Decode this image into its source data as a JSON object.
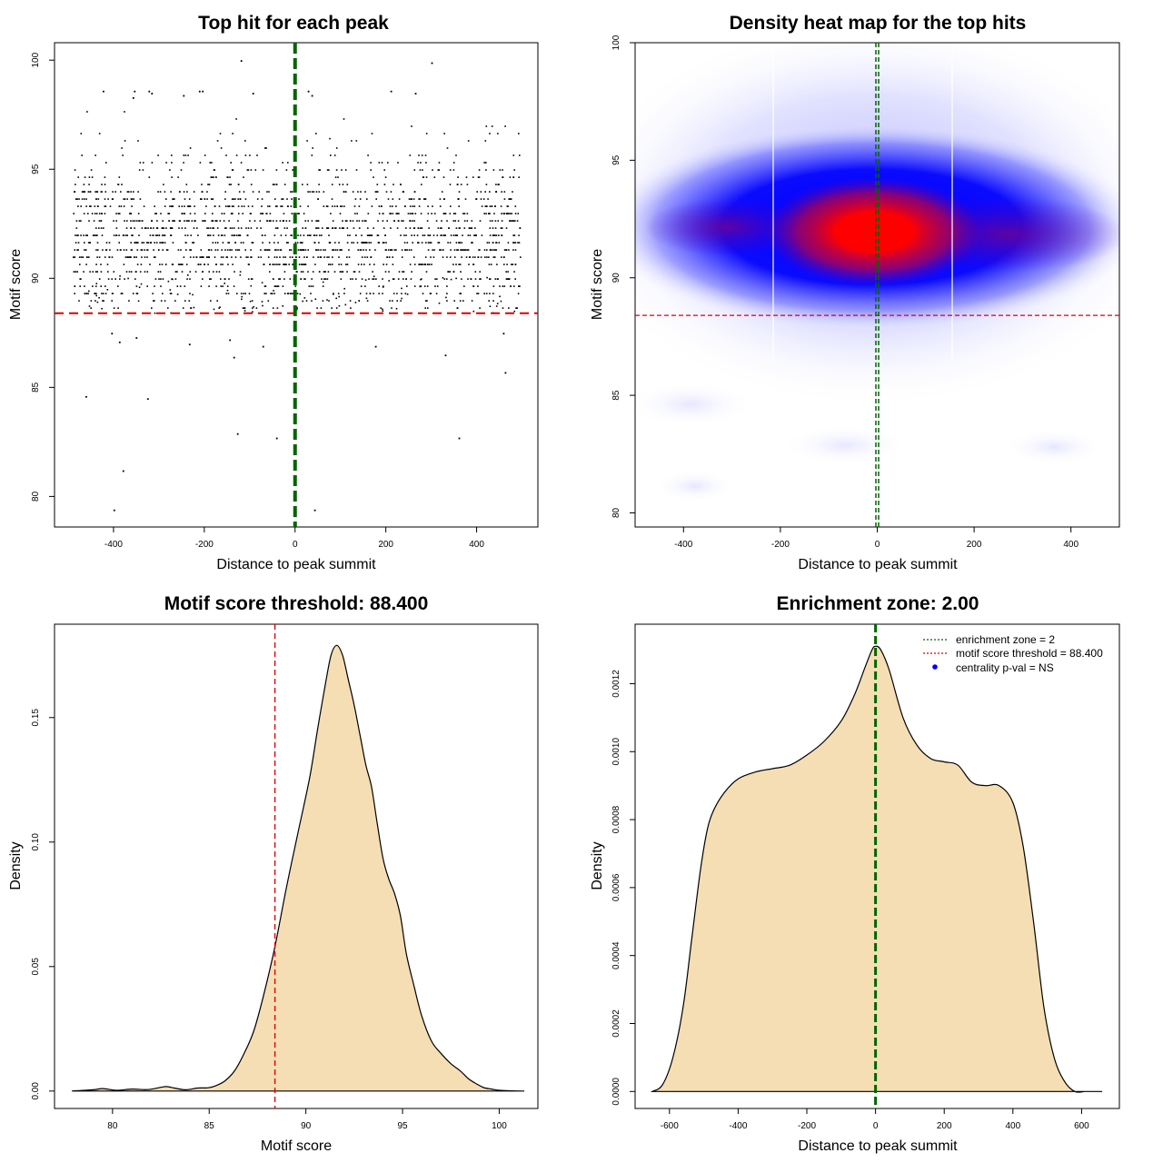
{
  "chart_data": [
    {
      "id": "scatter",
      "type": "scatter",
      "title": "Top hit for each peak",
      "xlabel": "Distance to peak summit",
      "ylabel": "Motif score",
      "xlim": [
        -530,
        535
      ],
      "ylim": [
        78.6,
        100.8
      ],
      "xticks": [
        -400,
        -200,
        0,
        200,
        400
      ],
      "yticks": [
        80,
        85,
        90,
        95,
        100
      ],
      "xtick_labels": [
        "-400",
        "-200",
        "0",
        "200",
        "400"
      ],
      "ytick_labels": [
        "80",
        "85",
        "90",
        "95",
        "100"
      ],
      "hline": {
        "y": 88.4,
        "color": "#dd0000"
      },
      "vline": {
        "x": 0,
        "color": "#006400"
      },
      "n_points": 1900,
      "core_distribution": {
        "x_range": [
          -490,
          495
        ],
        "y_mean": 91.8,
        "y_sd": 2.0
      },
      "outliers": [
        [
          -400,
          79.4
        ],
        [
          42,
          79.4
        ],
        [
          -380,
          81.2
        ],
        [
          -128,
          82.9
        ],
        [
          -42,
          82.7
        ],
        [
          360,
          82.7
        ],
        [
          -326,
          84.5
        ],
        [
          -462,
          84.6
        ],
        [
          -136,
          86.4
        ],
        [
          -72,
          86.9
        ],
        [
          330,
          86.5
        ],
        [
          462,
          85.7
        ],
        [
          -234,
          87.0
        ],
        [
          -145,
          87.2
        ],
        [
          -388,
          87.1
        ],
        [
          -405,
          87.5
        ],
        [
          -351,
          87.3
        ],
        [
          176,
          86.9
        ],
        [
          458,
          87.5
        ],
        [
          -120,
          100.0
        ],
        [
          300,
          99.9
        ],
        [
          -424,
          98.6
        ],
        [
          -355,
          98.6
        ],
        [
          -323,
          98.6
        ],
        [
          -317,
          98.5
        ],
        [
          -358,
          98.3
        ],
        [
          -247,
          98.4
        ],
        [
          -212,
          98.6
        ],
        [
          -205,
          98.6
        ],
        [
          -94,
          98.5
        ],
        [
          28,
          98.6
        ],
        [
          36,
          98.4
        ],
        [
          210,
          98.6
        ],
        [
          264,
          98.5
        ]
      ]
    },
    {
      "id": "heatmap",
      "type": "heatmap",
      "title": "Density heat map for the top hits",
      "xlabel": "Distance to peak summit",
      "ylabel": "Motif score",
      "xlim": [
        -500,
        500
      ],
      "ylim": [
        79.4,
        100.0
      ],
      "xticks": [
        -400,
        -200,
        0,
        200,
        400
      ],
      "yticks": [
        80,
        85,
        90,
        95,
        100
      ],
      "xtick_labels": [
        "-400",
        "-200",
        "0",
        "200",
        "400"
      ],
      "ytick_labels": [
        "80",
        "85",
        "90",
        "95",
        "100"
      ],
      "hline": {
        "y": 88.4,
        "color": "#dd0000"
      },
      "vline": {
        "x": 0,
        "color": "#006400"
      },
      "density_peak": {
        "x": 0,
        "y": 91.9
      },
      "colors": [
        "#ffffff",
        "#0000ff",
        "#ff0000"
      ]
    },
    {
      "id": "scoredens",
      "type": "area",
      "title": "Motif score threshold: 88.400",
      "xlabel": "Motif score",
      "ylabel": "Density",
      "xlim": [
        77.0,
        102.0
      ],
      "ylim": [
        -0.007,
        0.1875
      ],
      "xticks": [
        80,
        85,
        90,
        95,
        100
      ],
      "yticks": [
        0.0,
        0.05,
        0.1,
        0.15
      ],
      "xtick_labels": [
        "80",
        "85",
        "90",
        "95",
        "100"
      ],
      "ytick_labels": [
        "0.00",
        "0.05",
        "0.10",
        "0.15"
      ],
      "vline": {
        "x": 88.4,
        "color": "#dd0000"
      },
      "fill": "#f5deb3",
      "x": [
        77.9,
        79.0,
        79.5,
        80.2,
        81.0,
        81.8,
        82.5,
        82.8,
        83.2,
        83.8,
        84.4,
        84.9,
        85.3,
        85.8,
        86.3,
        86.8,
        87.3,
        87.8,
        88.4,
        89.0,
        89.6,
        90.2,
        90.6,
        91.0,
        91.3,
        91.6,
        91.9,
        92.2,
        92.5,
        92.8,
        93.1,
        93.4,
        93.7,
        94.0,
        94.3,
        94.6,
        94.9,
        95.2,
        95.6,
        96.0,
        96.5,
        97.0,
        97.5,
        98.0,
        98.4,
        98.8,
        99.2,
        99.6,
        100.0,
        100.5,
        101.3
      ],
      "y": [
        0.0,
        0.0005,
        0.001,
        0.0003,
        0.0008,
        0.0006,
        0.0015,
        0.0018,
        0.0012,
        0.0005,
        0.0012,
        0.0013,
        0.002,
        0.004,
        0.008,
        0.015,
        0.024,
        0.038,
        0.058,
        0.082,
        0.104,
        0.126,
        0.145,
        0.163,
        0.175,
        0.179,
        0.175,
        0.165,
        0.155,
        0.143,
        0.131,
        0.122,
        0.107,
        0.093,
        0.085,
        0.079,
        0.07,
        0.055,
        0.042,
        0.03,
        0.02,
        0.015,
        0.011,
        0.008,
        0.005,
        0.003,
        0.0014,
        0.0008,
        0.0003,
        0.0001,
        0.0
      ]
    },
    {
      "id": "distdens",
      "type": "area",
      "title": "Enrichment zone: 2.00",
      "xlabel": "Distance to peak summit",
      "ylabel": "Density",
      "xlim": [
        -700,
        710
      ],
      "ylim": [
        -5e-05,
        0.001375
      ],
      "xticks": [
        -600,
        -400,
        -200,
        0,
        200,
        400,
        600
      ],
      "yticks": [
        0.0,
        0.0002,
        0.0004,
        0.0006,
        0.0008,
        0.001,
        0.0012
      ],
      "xtick_labels": [
        "-600",
        "-400",
        "-200",
        "0",
        "200",
        "400",
        "600"
      ],
      "ytick_labels": [
        "0.0000",
        "0.0002",
        "0.0004",
        "0.0006",
        "0.0008",
        "0.0010",
        "0.0012"
      ],
      "vline": {
        "x": 0,
        "color": "#006400"
      },
      "fill": "#f5deb3",
      "x": [
        -650,
        -620,
        -590,
        -560,
        -535,
        -510,
        -490,
        -470,
        -440,
        -400,
        -350,
        -300,
        -250,
        -200,
        -150,
        -100,
        -60,
        -30,
        -10,
        0,
        15,
        40,
        80,
        120,
        160,
        200,
        240,
        280,
        320,
        360,
        400,
        430,
        460,
        490,
        520,
        550,
        580,
        610,
        640,
        660
      ],
      "y": [
        0.0,
        2e-05,
        0.0001,
        0.00025,
        0.00045,
        0.00065,
        0.00077,
        0.00083,
        0.00088,
        0.00092,
        0.00094,
        0.00095,
        0.00096,
        0.00099,
        0.00103,
        0.00109,
        0.00117,
        0.00125,
        0.0013,
        0.00131,
        0.0013,
        0.00124,
        0.0011,
        0.00102,
        0.00098,
        0.00097,
        0.00096,
        0.00091,
        0.0009,
        0.0009,
        0.00085,
        0.00072,
        0.0005,
        0.00025,
        0.0001,
        3e-05,
        0.0,
        0.0,
        0.0,
        0.0
      ],
      "legend": [
        {
          "label": "enrichment zone = 2",
          "color": "#006400",
          "marker": "dotted-line"
        },
        {
          "label": "motif score threshold = 88.400",
          "color": "#dd0000",
          "marker": "dotted-line"
        },
        {
          "label": "centrality p-val = NS",
          "color": "#0000ff",
          "marker": "dot"
        }
      ]
    }
  ]
}
